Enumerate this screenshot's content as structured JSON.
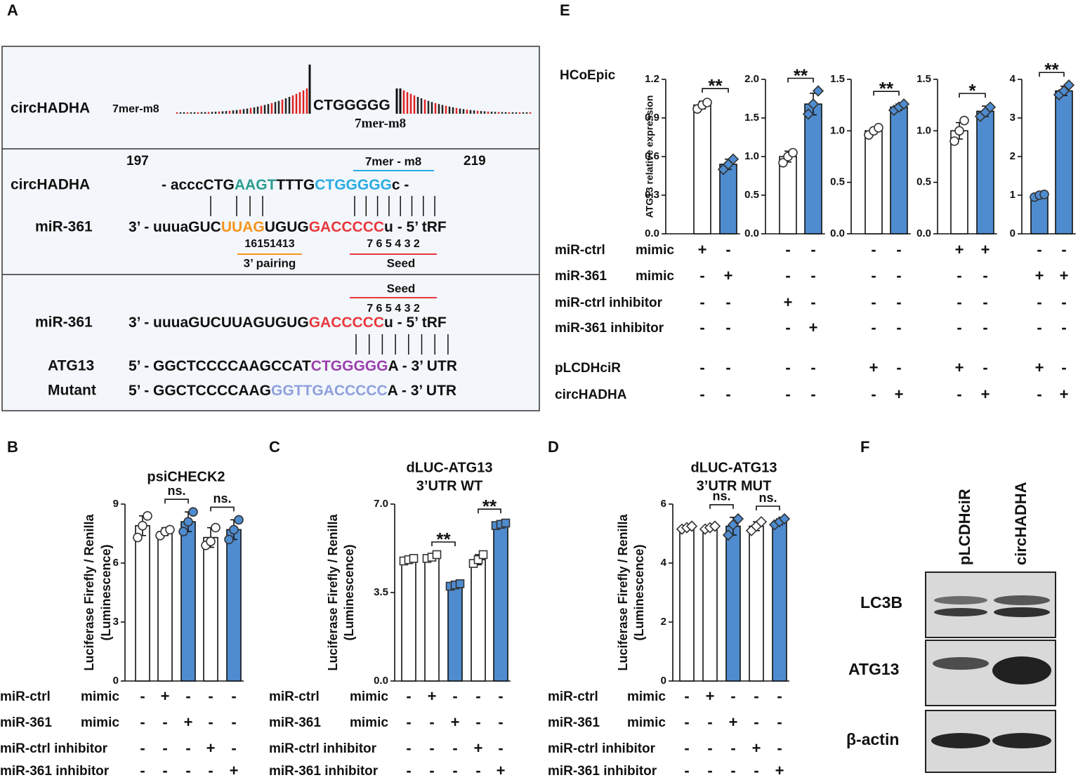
{
  "panel_labels": [
    "A",
    "B",
    "C",
    "D",
    "E",
    "F"
  ],
  "panel_a": {
    "site": {
      "name": "circHADHA",
      "type": "7mer-m8",
      "sequence": "CTGGGGG",
      "sequence_color": "#3f7fcf",
      "caption": "7mer-m8",
      "caption_color": "#4aa84a"
    },
    "pairing": {
      "start": "197",
      "end": "219",
      "site_label": "7mer - m8",
      "site_color": "#29abe2",
      "rows": [
        {
          "name": "circHADHA",
          "segments": [
            {
              "text": "- acccCTG",
              "color": "#111111"
            },
            {
              "text": "AAGT",
              "color": "#2a9d8f"
            },
            {
              "text": "TTTG",
              "color": "#111111"
            },
            {
              "text": "CTGGGGG",
              "color": "#29abe2"
            },
            {
              "text": "c -",
              "color": "#111111"
            }
          ]
        },
        {
          "name": "miR-361",
          "segments": [
            {
              "text": "3’ - uuuaGUC",
              "color": "#111111"
            },
            {
              "text": "UUAG",
              "color": "#f7941d"
            },
            {
              "text": "UGUG",
              "color": "#111111"
            },
            {
              "text": "GACCCCC",
              "color": "#e8383d"
            },
            {
              "text": "u - 5’ tRF",
              "color": "#111111"
            }
          ]
        }
      ],
      "numbers_3p": "16151413",
      "label_3p": "3’ pairing",
      "color_3p": "#f7941d",
      "numbers_seed": "7 6 5 4 3 2",
      "label_seed": "Seed",
      "color_seed": "#e8383d"
    },
    "target": {
      "label_seed": "Seed",
      "numbers_seed": "7 6 5 4 3 2",
      "color_seed": "#e8383d",
      "rows": [
        {
          "name": "miR-361",
          "segments": [
            {
              "text": "3’ - uuuaGUCUUAGUGUG",
              "color": "#111111"
            },
            {
              "text": "GACCCCC",
              "color": "#e8383d"
            },
            {
              "text": "u",
              "color": "#111111"
            },
            {
              "text": " - 5’ tRF",
              "color": "#111111"
            }
          ]
        },
        {
          "name": "ATG13",
          "segments": [
            {
              "text": "5’ - GGCTCCCCAAGCCAT",
              "color": "#111111"
            },
            {
              "text": "CTGGGGG",
              "color": "#9b3fae"
            },
            {
              "text": "A",
              "color": "#111111"
            },
            {
              "text": " - 3’ UTR",
              "color": "#111111"
            }
          ]
        },
        {
          "name": "Mutant",
          "segments": [
            {
              "text": "5’ - GGCTCCCCAAG",
              "color": "#111111"
            },
            {
              "text": "GGTTGACCCCC",
              "color": "#8f9fdc"
            },
            {
              "text": "A",
              "color": "#111111"
            },
            {
              "text": " - 3’ UTR",
              "color": "#111111"
            }
          ]
        }
      ]
    }
  },
  "panel_e": {
    "cell_line": "HCoEpic",
    "conditions": [
      {
        "name": "miR-ctrl",
        "kind": "mimic",
        "signs": [
          "+",
          "-",
          "-",
          "-",
          "-",
          "-",
          "+",
          "+",
          "-",
          "-"
        ]
      },
      {
        "name": "miR-361",
        "kind": "mimic",
        "signs": [
          "-",
          "+",
          "-",
          "-",
          "-",
          "-",
          "-",
          "-",
          "+",
          "+"
        ]
      },
      {
        "name": "miR-ctrl inhibitor",
        "signs": [
          "-",
          "-",
          "+",
          "-",
          "-",
          "-",
          "-",
          "-",
          "-",
          "-"
        ]
      },
      {
        "name": "miR-361 inhibitor",
        "signs": [
          "-",
          "-",
          "-",
          "+",
          "-",
          "-",
          "-",
          "-",
          "-",
          "-"
        ]
      },
      {
        "name": "pLCDHciR",
        "signs": [
          "-",
          "-",
          "-",
          "-",
          "+",
          "-",
          "+",
          "-",
          "+",
          "-"
        ]
      },
      {
        "name": "circHADHA",
        "signs": [
          "-",
          "-",
          "-",
          "-",
          "-",
          "+",
          "-",
          "+",
          "-",
          "+"
        ]
      }
    ]
  },
  "luciferase_conditions": [
    {
      "name": "miR-ctrl",
      "kind": "mimic",
      "signs": [
        "-",
        "+",
        "-",
        "-",
        "-"
      ]
    },
    {
      "name": "miR-361",
      "kind": "mimic",
      "signs": [
        "-",
        "-",
        "+",
        "-",
        "-"
      ]
    },
    {
      "name": "miR-ctrl inhibitor",
      "signs": [
        "-",
        "-",
        "-",
        "+",
        "-"
      ]
    },
    {
      "name": "miR-361 inhibitor",
      "signs": [
        "-",
        "-",
        "-",
        "-",
        "+"
      ]
    }
  ],
  "panel_f": {
    "lanes": [
      "pLCDHciR",
      "circHADHA"
    ],
    "proteins": [
      "LC3B",
      "ATG13",
      "β-actin"
    ]
  },
  "chart_data": [
    {
      "type": "bar",
      "ylabel": [
        "ATG13 relative expression"
      ],
      "categories": [
        null,
        null
      ],
      "values": [
        1.0,
        0.54
      ],
      "errors": [
        0.03,
        0.04
      ],
      "points": [
        [
          0.97,
          1.0,
          1.02
        ],
        [
          0.5,
          0.54,
          0.58
        ]
      ],
      "colors": [
        "#ffffff",
        "#4f8ccf"
      ],
      "markers": [
        "circle",
        "diamond"
      ],
      "ylim": [
        0,
        1.2
      ],
      "yticks": [
        {
          "value": 0,
          "label": "0.0"
        },
        0.3,
        0.6,
        0.9,
        1.2
      ],
      "annotations": [
        {
          "text": "**",
          "span": [
            0,
            1
          ]
        }
      ]
    },
    {
      "type": "bar",
      "categories": [
        null,
        null
      ],
      "values": [
        1.0,
        1.68
      ],
      "errors": [
        0.07,
        0.14
      ],
      "points": [
        [
          0.92,
          1.0,
          1.05
        ],
        [
          1.55,
          1.68,
          1.85
        ]
      ],
      "colors": [
        "#ffffff",
        "#4f8ccf"
      ],
      "markers": [
        "circle",
        "diamond"
      ],
      "ylim": [
        0,
        2.0
      ],
      "yticks": [
        {
          "value": 0,
          "label": "0.0"
        },
        0.5,
        {
          "value": 1,
          "label": "1.0"
        },
        1.5,
        {
          "value": 2,
          "label": "2.0"
        }
      ],
      "annotations": [
        {
          "text": "**",
          "span": [
            0,
            1
          ]
        }
      ]
    },
    {
      "type": "bar",
      "categories": [
        null,
        null
      ],
      "values": [
        1.0,
        1.23
      ],
      "errors": [
        0.03,
        0.03
      ],
      "points": [
        [
          0.96,
          1.0,
          1.03
        ],
        [
          1.2,
          1.23,
          1.26
        ]
      ],
      "colors": [
        "#ffffff",
        "#4f8ccf"
      ],
      "markers": [
        "circle",
        "diamond"
      ],
      "ylim": [
        0,
        1.5
      ],
      "yticks": [
        {
          "value": 0,
          "label": "0.0"
        },
        0.5,
        {
          "value": 1,
          "label": "1.0"
        },
        1.5
      ],
      "annotations": [
        {
          "text": "**",
          "span": [
            0,
            1
          ]
        }
      ]
    },
    {
      "type": "bar",
      "categories": [
        null,
        null
      ],
      "values": [
        1.0,
        1.19
      ],
      "errors": [
        0.08,
        0.05
      ],
      "points": [
        [
          0.9,
          1.0,
          1.1
        ],
        [
          1.14,
          1.18,
          1.23
        ]
      ],
      "colors": [
        "#ffffff",
        "#4f8ccf"
      ],
      "markers": [
        "circle",
        "diamond"
      ],
      "ylim": [
        0,
        1.5
      ],
      "yticks": [
        {
          "value": 0,
          "label": "0.0"
        },
        0.5,
        {
          "value": 1,
          "label": "1.0"
        },
        1.5
      ],
      "annotations": [
        {
          "text": "*",
          "span": [
            0,
            1
          ]
        }
      ]
    },
    {
      "type": "bar",
      "categories": [
        null,
        null
      ],
      "values": [
        1.0,
        3.7
      ],
      "errors": [
        0.05,
        0.12
      ],
      "points": [
        [
          0.95,
          1.0,
          1.02
        ],
        [
          3.6,
          3.7,
          3.85
        ]
      ],
      "colors": [
        "#4f8ccf",
        "#4f8ccf"
      ],
      "markers": [
        "circle",
        "diamond"
      ],
      "ylim": [
        0,
        4
      ],
      "yticks": [
        0,
        1,
        2,
        3,
        4
      ],
      "annotations": [
        {
          "text": "**",
          "span": [
            0,
            1
          ]
        }
      ]
    },
    {
      "type": "bar",
      "title": [
        "psiCHECK2"
      ],
      "ylabel": [
        "Luciferase Firefly / Renilla",
        "(Luminescence)"
      ],
      "categories": [
        null,
        null,
        null,
        null,
        null
      ],
      "values": [
        7.9,
        7.6,
        8.1,
        7.3,
        7.7
      ],
      "errors": [
        0.5,
        0.2,
        0.5,
        0.5,
        0.5
      ],
      "points": [
        [
          7.3,
          7.9,
          8.4
        ],
        [
          7.4,
          7.6,
          7.7
        ],
        [
          7.6,
          8.1,
          8.6
        ],
        [
          6.9,
          7.1,
          7.8
        ],
        [
          7.2,
          7.7,
          8.2
        ]
      ],
      "colors": [
        "#ffffff",
        "#ffffff",
        "#4f8ccf",
        "#ffffff",
        "#4f8ccf"
      ],
      "markers": [
        "circle",
        "circle",
        "circle",
        "circle",
        "circle"
      ],
      "ylim": [
        0,
        9
      ],
      "yticks": [
        0,
        3,
        6,
        9
      ],
      "annotations": [
        {
          "text": "ns.",
          "span": [
            1,
            2
          ]
        },
        {
          "text": "ns.",
          "span": [
            3,
            4
          ]
        }
      ]
    },
    {
      "type": "bar",
      "title": [
        "dLUC-ATG13",
        "3’UTR WT"
      ],
      "ylabel": [
        "Luciferase Firefly / Renilla",
        "(Luminescence)"
      ],
      "categories": [
        null,
        null,
        null,
        null,
        null
      ],
      "values": [
        4.8,
        4.9,
        3.8,
        4.8,
        6.2
      ],
      "errors": [
        0.1,
        0.1,
        0.1,
        0.2,
        0.1
      ],
      "points": [
        [
          4.75,
          4.8,
          4.85
        ],
        [
          4.85,
          4.9,
          5.0
        ],
        [
          3.75,
          3.8,
          3.85
        ],
        [
          4.65,
          4.8,
          5.0
        ],
        [
          6.15,
          6.2,
          6.25
        ]
      ],
      "colors": [
        "#ffffff",
        "#ffffff",
        "#4f8ccf",
        "#ffffff",
        "#4f8ccf"
      ],
      "markers": [
        "square",
        "square",
        "square",
        "square",
        "square"
      ],
      "ylim": [
        0,
        7
      ],
      "yticks": [
        {
          "value": 0,
          "label": "0.0"
        },
        3.5,
        {
          "value": 7,
          "label": "7.0"
        }
      ],
      "annotations": [
        {
          "text": "**",
          "span": [
            1,
            2
          ]
        },
        {
          "text": "**",
          "span": [
            3,
            4
          ]
        }
      ]
    },
    {
      "type": "bar",
      "title": [
        "dLUC-ATG13",
        "3’UTR MUT"
      ],
      "ylabel": [
        "Luciferase Firefly / Renilla",
        "(Luminescence)"
      ],
      "categories": [
        null,
        null,
        null,
        null,
        null
      ],
      "values": [
        5.2,
        5.2,
        5.25,
        5.25,
        5.4
      ],
      "errors": [
        0.05,
        0.05,
        0.3,
        0.15,
        0.1
      ],
      "points": [
        [
          5.15,
          5.2,
          5.25
        ],
        [
          5.15,
          5.2,
          5.25
        ],
        [
          4.95,
          5.3,
          5.5
        ],
        [
          5.1,
          5.25,
          5.4
        ],
        [
          5.3,
          5.4,
          5.5
        ]
      ],
      "colors": [
        "#ffffff",
        "#ffffff",
        "#4f8ccf",
        "#ffffff",
        "#4f8ccf"
      ],
      "markers": [
        "diamond",
        "diamond",
        "diamond",
        "diamond",
        "diamond"
      ],
      "ylim": [
        0,
        6
      ],
      "yticks": [
        0,
        2,
        4,
        6
      ],
      "annotations": [
        {
          "text": "ns.",
          "span": [
            1,
            2
          ]
        },
        {
          "text": "ns.",
          "span": [
            3,
            4
          ]
        }
      ]
    }
  ]
}
